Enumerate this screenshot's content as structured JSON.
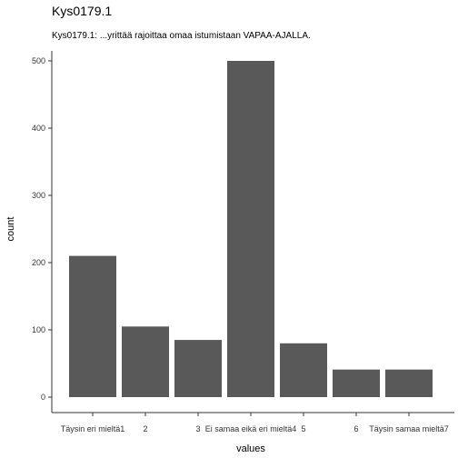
{
  "chart_data": {
    "type": "bar",
    "title": "Kys0179.1",
    "subtitle": "Kys0179.1: ...yrittää rajoittaa omaa istumistaan VAPAA-AJALLA.",
    "xlabel": "values",
    "ylabel": "count",
    "categories": [
      "Täysin eri mieltä1",
      "2",
      "3",
      "Ei samaa eikä eri mieltä4",
      "5",
      "6",
      "Täysin samaa mieltä7"
    ],
    "values": [
      210,
      105,
      85,
      500,
      80,
      41,
      41
    ],
    "ylim": [
      0,
      500
    ],
    "yticks": [
      0,
      100,
      200,
      300,
      400,
      500
    ],
    "bar_color": "#595959",
    "grid": false
  }
}
